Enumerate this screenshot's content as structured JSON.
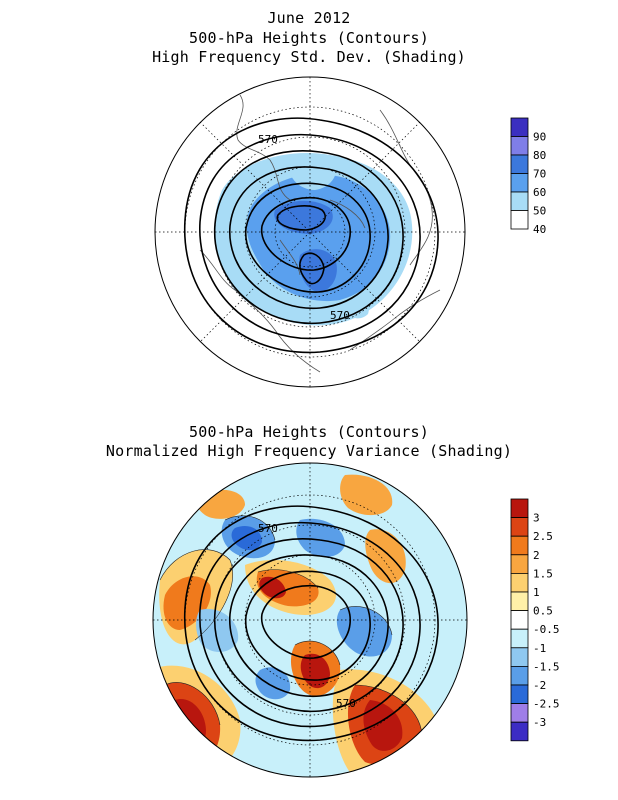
{
  "page": {
    "title_date": "June 2012",
    "panel1": {
      "title_line1": "500-hPa Heights (Contours)",
      "title_line2": "High Frequency Std. Dev. (Shading)",
      "contour_labels": [
        "570",
        "570"
      ],
      "colorbar": {
        "labels": [
          "90",
          "80",
          "70",
          "60",
          "50",
          "40"
        ],
        "colors": [
          "#3b2fc0",
          "#7f7ee8",
          "#3c78dc",
          "#5aa0ee",
          "#a8dcf6",
          "#ffffff"
        ]
      }
    },
    "panel2": {
      "title_line1": "500-hPa Heights (Contours)",
      "title_line2": "Normalized High Frequency Variance (Shading)",
      "contour_labels": [
        "570",
        "570"
      ],
      "colorbar": {
        "labels": [
          "3",
          "2.5",
          "2",
          "1.5",
          "1",
          "0.5",
          "-0.5",
          "-1",
          "-1.5",
          "-2",
          "-2.5",
          "-3"
        ],
        "colors": [
          "#b8160e",
          "#dc4414",
          "#f07a1c",
          "#f8a640",
          "#fcd070",
          "#fff0a8",
          "#ffffff",
          "#c8f0fa",
          "#8fc8f0",
          "#5a9ee8",
          "#2a6ad8",
          "#9f7ee8",
          "#3c2cc4"
        ]
      }
    }
  }
}
